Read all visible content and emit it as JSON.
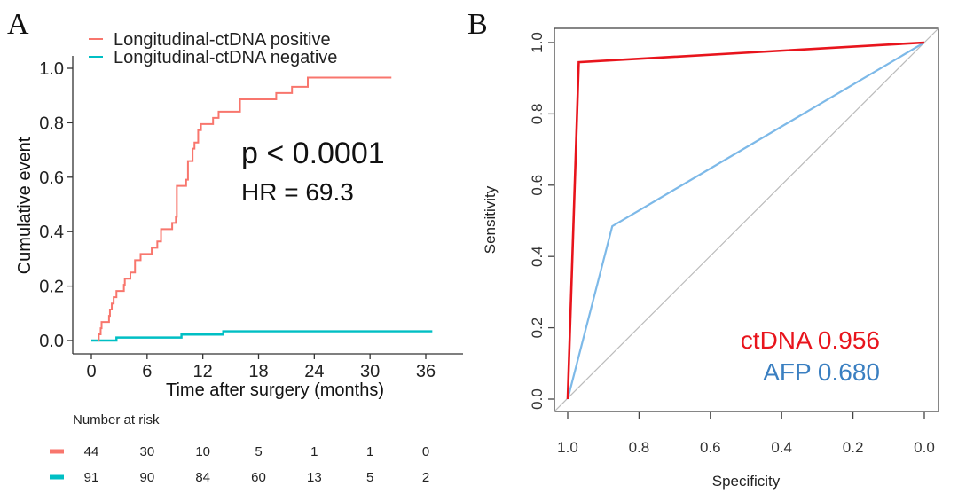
{
  "chart_data": [
    {
      "panel": "A",
      "type": "line",
      "subtype": "step (cumulative incidence / Kaplan-Meier)",
      "title": "",
      "xlabel": "Time after surgery (months)",
      "ylabel": "Cumulative event",
      "xlim": [
        0,
        36
      ],
      "ylim": [
        0,
        1.0
      ],
      "xticks": [
        "0",
        "6",
        "12",
        "18",
        "24",
        "30",
        "36"
      ],
      "xtick_values": [
        0,
        6,
        12,
        18,
        24,
        30,
        36
      ],
      "yticks": [
        "0.0",
        "0.2",
        "0.4",
        "0.6",
        "0.8",
        "1.0"
      ],
      "ytick_values": [
        0,
        0.2,
        0.4,
        0.6,
        0.8,
        1.0
      ],
      "grid": false,
      "legend_position": "top-left",
      "series": [
        {
          "name": "Longitudinal-ctDNA positive",
          "color": "#F8766D",
          "steps": [
            [
              0.8,
              0.0
            ],
            [
              0.8,
              0.023
            ],
            [
              1.0,
              0.045
            ],
            [
              1.1,
              0.068
            ],
            [
              1.9,
              0.068
            ],
            [
              1.9,
              0.091
            ],
            [
              2.0,
              0.114
            ],
            [
              2.2,
              0.136
            ],
            [
              2.4,
              0.159
            ],
            [
              2.7,
              0.182
            ],
            [
              3.5,
              0.205
            ],
            [
              3.6,
              0.227
            ],
            [
              4.2,
              0.25
            ],
            [
              4.7,
              0.295
            ],
            [
              5.3,
              0.318
            ],
            [
              6.5,
              0.341
            ],
            [
              7.1,
              0.364
            ],
            [
              7.5,
              0.409
            ],
            [
              8.7,
              0.432
            ],
            [
              9.1,
              0.455
            ],
            [
              9.2,
              0.568
            ],
            [
              10.2,
              0.591
            ],
            [
              10.4,
              0.659
            ],
            [
              10.9,
              0.705
            ],
            [
              11.1,
              0.727
            ],
            [
              11.5,
              0.773
            ],
            [
              11.8,
              0.795
            ],
            [
              13.1,
              0.818
            ],
            [
              13.7,
              0.841
            ],
            [
              16.0,
              0.886
            ],
            [
              19.9,
              0.909
            ],
            [
              21.6,
              0.932
            ],
            [
              23.3,
              0.966
            ],
            [
              32.3,
              0.966
            ]
          ]
        },
        {
          "name": "Longitudinal-ctDNA negative",
          "color": "#00BFC4",
          "steps": [
            [
              0.0,
              0.0
            ],
            [
              2.7,
              0.0
            ],
            [
              2.7,
              0.011
            ],
            [
              9.7,
              0.011
            ],
            [
              9.7,
              0.022
            ],
            [
              14.2,
              0.022
            ],
            [
              14.2,
              0.034
            ],
            [
              36.7,
              0.034
            ]
          ]
        }
      ],
      "annotations": [
        "p < 0.0001",
        "HR = 69.3"
      ],
      "risk_table": {
        "title": "Number at risk",
        "times": [
          0,
          6,
          12,
          18,
          24,
          30,
          36
        ],
        "rows": [
          {
            "group": "Longitudinal-ctDNA positive",
            "color": "#F8766D",
            "values": [
              "44",
              "30",
              "10",
              "5",
              "1",
              "1",
              "0"
            ]
          },
          {
            "group": "Longitudinal-ctDNA negative",
            "color": "#00BFC4",
            "values": [
              "91",
              "90",
              "84",
              "60",
              "13",
              "5",
              "2"
            ]
          }
        ]
      }
    },
    {
      "panel": "B",
      "type": "line",
      "subtype": "ROC curve",
      "title": "",
      "xlabel": "Specificity",
      "ylabel": "Sensitivity",
      "xlim": [
        1.0,
        0.0
      ],
      "ylim": [
        0.0,
        1.0
      ],
      "xticks": [
        "1.0",
        "0.8",
        "0.6",
        "0.4",
        "0.2",
        "0.0"
      ],
      "xtick_values": [
        1.0,
        0.8,
        0.6,
        0.4,
        0.2,
        0.0
      ],
      "yticks": [
        "0.0",
        "0.2",
        "0.4",
        "0.6",
        "0.8",
        "1.0"
      ],
      "ytick_values": [
        0,
        0.2,
        0.4,
        0.6,
        0.8,
        1.0
      ],
      "grid": false,
      "legend_position": "bottom-right",
      "series": [
        {
          "name": "ctDNA",
          "auc": "0.956",
          "color": "#E8141C",
          "points": [
            [
              1.0,
              0.0
            ],
            [
              0.969,
              0.945
            ],
            [
              0.0,
              1.0
            ]
          ]
        },
        {
          "name": "AFP",
          "auc": "0.680",
          "color": "#7DB9E8",
          "points": [
            [
              1.0,
              0.0
            ],
            [
              0.875,
              0.485
            ],
            [
              0.0,
              1.0
            ]
          ]
        }
      ],
      "reference_line": {
        "color": "#BBBBBB",
        "points": [
          [
            1.0,
            0.0
          ],
          [
            0.0,
            1.0
          ]
        ]
      },
      "legend_entries": [
        {
          "label": "ctDNA 0.956",
          "color": "#E8141C"
        },
        {
          "label": "AFP 0.680",
          "color": "#3A7FC1"
        }
      ]
    }
  ],
  "panels": {
    "a_label": "A",
    "b_label": "B"
  }
}
